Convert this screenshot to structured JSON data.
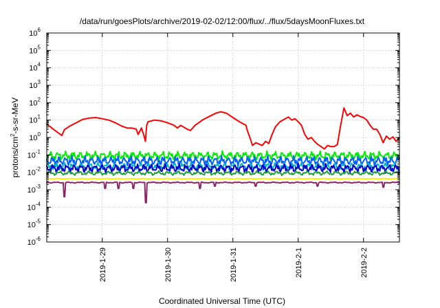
{
  "chart_data": {
    "type": "line",
    "title": "/data/run/goesPlots/archive/2019-02-02/12:00/flux/../flux/5daysMoonFluxes.txt",
    "xlabel": "Coordinated Universal Time (UTC)",
    "ylabel": "protons/cm²-s-sr-MeV",
    "ylabel_parts": {
      "base": "protons/cm",
      "sup": "2",
      "rest": "-s-sr-MeV"
    },
    "yscale": "log",
    "ylim_exponents": [
      -6,
      6
    ],
    "ytick_base": "10",
    "ytick_exponents": [
      "-6",
      "-5",
      "-4",
      "-3",
      "-2",
      "-1",
      "0",
      "1",
      "2",
      "3",
      "4",
      "5",
      "6"
    ],
    "xlim_days": [
      28.15,
      33.55
    ],
    "xtick_labels": [
      "2019-1-29",
      "2019-1-30",
      "2019-1-31",
      "2019-2-1",
      "2019-2-2"
    ],
    "xtick_days": [
      29,
      30,
      31,
      32,
      33
    ],
    "grid": true,
    "legend": "none",
    "series": [
      {
        "color": "#ff0000",
        "points": [
          [
            28.15,
            6
          ],
          [
            28.25,
            3
          ],
          [
            28.33,
            1.8
          ],
          [
            28.38,
            1.3
          ],
          [
            28.42,
            2.8
          ],
          [
            28.5,
            4.5
          ],
          [
            28.6,
            7
          ],
          [
            28.7,
            11
          ],
          [
            28.8,
            13
          ],
          [
            28.9,
            14
          ],
          [
            29.0,
            12
          ],
          [
            29.1,
            10
          ],
          [
            29.2,
            7
          ],
          [
            29.3,
            4.5
          ],
          [
            29.38,
            3.5
          ],
          [
            29.45,
            3.5
          ],
          [
            29.52,
            3
          ],
          [
            29.55,
            1.5
          ],
          [
            29.6,
            3.5
          ],
          [
            29.64,
            1.2
          ],
          [
            29.66,
            0.6
          ],
          [
            29.68,
            5
          ],
          [
            29.7,
            8
          ],
          [
            29.8,
            10
          ],
          [
            29.9,
            9
          ],
          [
            30.0,
            7
          ],
          [
            30.1,
            5
          ],
          [
            30.15,
            3.5
          ],
          [
            30.2,
            5
          ],
          [
            30.3,
            3
          ],
          [
            30.35,
            2.5
          ],
          [
            30.42,
            5
          ],
          [
            30.55,
            11
          ],
          [
            30.65,
            17
          ],
          [
            30.75,
            26
          ],
          [
            30.82,
            30
          ],
          [
            30.9,
            25
          ],
          [
            31.0,
            14
          ],
          [
            31.1,
            8
          ],
          [
            31.2,
            5
          ],
          [
            31.22,
            2.5
          ],
          [
            31.26,
            1
          ],
          [
            31.3,
            0.35
          ],
          [
            31.35,
            0.5
          ],
          [
            31.45,
            0.35
          ],
          [
            31.5,
            0.6
          ],
          [
            31.55,
            0.45
          ],
          [
            31.6,
            1.5
          ],
          [
            31.65,
            4
          ],
          [
            31.72,
            8
          ],
          [
            31.8,
            12
          ],
          [
            31.85,
            15
          ],
          [
            31.9,
            10
          ],
          [
            31.95,
            12
          ],
          [
            32.0,
            8
          ],
          [
            32.05,
            5
          ],
          [
            32.1,
            1.5
          ],
          [
            32.15,
            0.8
          ],
          [
            32.2,
            1
          ],
          [
            32.25,
            0.6
          ],
          [
            32.3,
            0.4
          ],
          [
            32.35,
            0.3
          ],
          [
            32.4,
            0.22
          ],
          [
            32.45,
            0.35
          ],
          [
            32.5,
            0.3
          ],
          [
            32.55,
            0.3
          ],
          [
            32.6,
            0.4
          ],
          [
            32.65,
            5
          ],
          [
            32.7,
            50
          ],
          [
            32.75,
            18
          ],
          [
            32.8,
            25
          ],
          [
            32.85,
            15
          ],
          [
            32.9,
            20
          ],
          [
            32.95,
            16
          ],
          [
            33.0,
            14
          ],
          [
            33.05,
            10
          ],
          [
            33.1,
            5
          ],
          [
            33.15,
            3
          ],
          [
            33.2,
            3
          ],
          [
            33.25,
            1.5
          ],
          [
            33.3,
            0.5
          ],
          [
            33.35,
            1.2
          ],
          [
            33.4,
            0.8
          ],
          [
            33.45,
            1.1
          ],
          [
            33.5,
            0.6
          ],
          [
            33.55,
            1
          ]
        ]
      },
      {
        "color": "#00ee00",
        "base": 0.09,
        "jitter": 0.25,
        "period": 0.031,
        "phase": 0.3
      },
      {
        "color": "#0060ff",
        "base": 0.045,
        "jitter": 0.28,
        "period": 0.027,
        "phase": 1.1
      },
      {
        "color": "#00b8c8",
        "base": 0.022,
        "jitter": 0.2,
        "period": 0.035,
        "phase": 2.0
      },
      {
        "color": "#0000cc",
        "base": 0.017,
        "jitter": 0.25,
        "period": 0.029,
        "phase": 2.7
      },
      {
        "color": "#20a040",
        "base": 0.009,
        "jitter": 0.12,
        "period": 0.041,
        "phase": 0.8
      },
      {
        "color": "#f2f200",
        "base": 0.0043,
        "jitter": 0.02,
        "period": 0.05,
        "phase": 0.0
      },
      {
        "color": "#8b2567",
        "base": 0.0026,
        "jitter": 0.03,
        "period": 0.05,
        "phase": 0.5,
        "dips": [
          [
            28.42,
            0.0004
          ],
          [
            29.05,
            0.0012
          ],
          [
            29.25,
            0.0012
          ],
          [
            29.48,
            0.0012
          ],
          [
            29.67,
            0.00018
          ],
          [
            30.5,
            0.0012
          ],
          [
            30.72,
            0.0016
          ],
          [
            31.35,
            0.0016
          ],
          [
            32.3,
            0.0016
          ],
          [
            33.3,
            0.0014
          ]
        ]
      }
    ]
  }
}
